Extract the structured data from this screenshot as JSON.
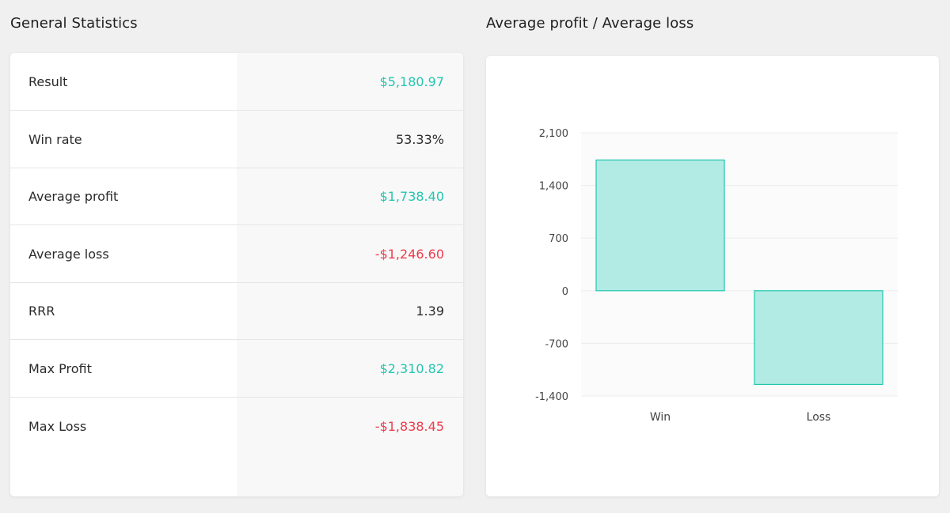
{
  "left_panel": {
    "title": "General Statistics",
    "rows": [
      {
        "label": "Result",
        "value": "$5,180.97",
        "tone": "pos"
      },
      {
        "label": "Win rate",
        "value": "53.33%",
        "tone": "neu"
      },
      {
        "label": "Average profit",
        "value": "$1,738.40",
        "tone": "pos"
      },
      {
        "label": "Average loss",
        "value": "-$1,246.60",
        "tone": "neg"
      },
      {
        "label": "RRR",
        "value": "1.39",
        "tone": "neu"
      },
      {
        "label": "Max Profit",
        "value": "$2,310.82",
        "tone": "pos"
      },
      {
        "label": "Max Loss",
        "value": "-$1,838.45",
        "tone": "neg"
      }
    ]
  },
  "right_panel": {
    "title": "Average profit / Average loss"
  },
  "colors": {
    "positive": "#22c6b0",
    "negative": "#ee3b4c",
    "bar_fill": "#b2ebe4",
    "bar_stroke": "#22c6b0"
  },
  "chart_data": {
    "type": "bar",
    "categories": [
      "Win",
      "Loss"
    ],
    "values": [
      1738.4,
      -1246.6
    ],
    "yticks": [
      "2,100",
      "1,400",
      "700",
      "0",
      "-700",
      "-1,400"
    ],
    "ytick_values": [
      2100,
      1400,
      700,
      0,
      -700,
      -1400
    ],
    "ylim": [
      -1400,
      2100
    ],
    "grid": true,
    "title": "",
    "xlabel": "",
    "ylabel": ""
  }
}
